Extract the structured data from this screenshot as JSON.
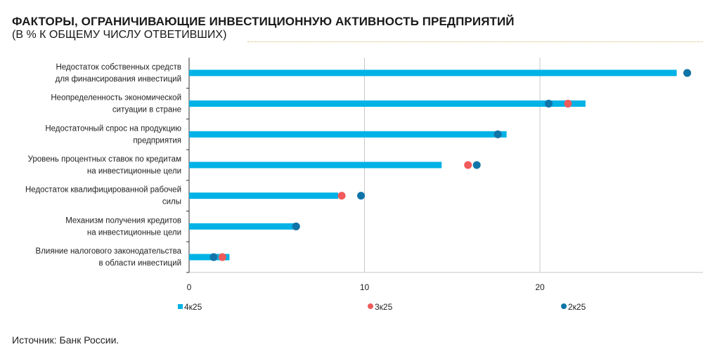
{
  "title": "ФАКТОРЫ, ОГРАНИЧИВАЮЩИЕ ИНВЕСТИЦИОННУЮ АКТИВНОСТЬ ПРЕДПРИЯТИЙ",
  "subtitle": "(В % К ОБЩЕМУ ЧИСЛУ ОТВЕТИВШИХ)",
  "source": "Источник: Банк России.",
  "chart_data": {
    "type": "bar",
    "orientation": "horizontal",
    "categories": [
      [
        "Недостаток собственных средств",
        "для финансирования инвестиций"
      ],
      [
        "Неопределенность экономической",
        "ситуации в стране"
      ],
      [
        "Недостаточный спрос на продукцию",
        "предприятия"
      ],
      [
        "Уровень процентных ставок по кредитам",
        "на инвестиционные цели"
      ],
      [
        "Недостаток квалифицированной рабочей",
        "силы"
      ],
      [
        "Механизм получения кредитов",
        "на инвестиционные цели"
      ],
      [
        "Влияние налогового законодательства",
        "в области инвестиций"
      ]
    ],
    "series": [
      {
        "name": "4к25",
        "mark": "bar",
        "color": "#00b2e6",
        "values": [
          27.8,
          22.6,
          18.1,
          14.4,
          8.5,
          6.1,
          2.3
        ]
      },
      {
        "name": "3к25",
        "mark": "dot",
        "color": "#f05a5a",
        "values": [
          28.4,
          21.6,
          17.6,
          15.9,
          8.7,
          6.1,
          1.9
        ]
      },
      {
        "name": "2к25",
        "mark": "dot",
        "color": "#0f75a8",
        "values": [
          28.4,
          20.5,
          17.6,
          16.4,
          9.8,
          6.1,
          1.4
        ]
      }
    ],
    "xlim": [
      0,
      29
    ],
    "xticks": [
      "0",
      "10",
      "20"
    ],
    "grid": true,
    "legend": "bottom"
  }
}
